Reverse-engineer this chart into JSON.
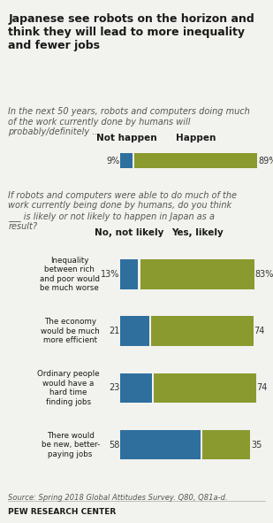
{
  "title": "Japanese see robots on the horizon and\nthink they will lead to more inequality\nand fewer jobs",
  "subtitle1": "In the next 50 years, robots and computers doing much\nof the work currently done by humans will\nprobably/definitely ...",
  "subtitle2": "If robots and computers were able to do much of the\nwork currently being done by humans, do you think\n___ is likely or not likely to happen in Japan as a\nresult?",
  "source": "Source: Spring 2018 Global Attitudes Survey. Q80, Q81a-d.",
  "footer": "PEW RESEARCH CENTER",
  "top_bar": {
    "not_happen_val": 9,
    "happen_val": 89,
    "not_happen_label": "Not happen",
    "happen_label": "Happen",
    "blue_color": "#2E6F9E",
    "olive_color": "#8A9A2E"
  },
  "bottom_bars": {
    "categories": [
      "Inequality\nbetween rich\nand poor would\nbe much worse",
      "The economy\nwould be much\nmore efficient",
      "Ordinary people\nwould have a\nhard time\nfinding jobs",
      "There would\nbe new, better-\npaying jobs"
    ],
    "no_vals": [
      13,
      21,
      23,
      58
    ],
    "yes_vals": [
      83,
      74,
      74,
      35
    ],
    "no_label": "No, not likely",
    "yes_label": "Yes, likely",
    "blue_color": "#2E6F9E",
    "olive_color": "#8A9A2E",
    "no_pct_labels": [
      "13%",
      "21",
      "23",
      "58"
    ],
    "yes_pct_labels": [
      "83%",
      "74",
      "74",
      "35"
    ]
  },
  "background_color": "#F2F2EE"
}
